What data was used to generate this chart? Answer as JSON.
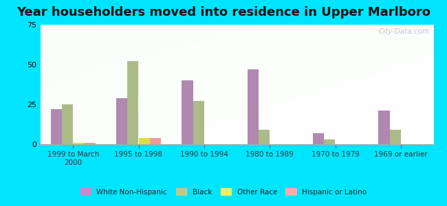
{
  "title": "Year householders moved into residence in Upper Marlboro",
  "categories": [
    "1999 to March\n2000",
    "1995 to 1998",
    "1990 to 1994",
    "1980 to 1989",
    "1970 to 1979",
    "1969 or earlier"
  ],
  "series": {
    "White Non-Hispanic": [
      22,
      29,
      40,
      47,
      7,
      21
    ],
    "Black": [
      25,
      52,
      27,
      9,
      3,
      9
    ],
    "Other Race": [
      1,
      4,
      0,
      0,
      0,
      0
    ],
    "Hispanic or Latino": [
      1,
      4,
      0,
      0,
      0,
      0
    ]
  },
  "colors": {
    "White Non-Hispanic": "#b088b0",
    "Black": "#aabb88",
    "Other Race": "#dddd44",
    "Hispanic or Latino": "#ee9999"
  },
  "legend_colors": {
    "White Non-Hispanic": "#cc88cc",
    "Black": "#bbcc88",
    "Other Race": "#eeee66",
    "Hispanic or Latino": "#ffaaaa"
  },
  "ylim": [
    0,
    75
  ],
  "yticks": [
    0,
    25,
    50,
    75
  ],
  "outer_bg": "#00e5ff",
  "watermark": "City-Data.com",
  "bar_width": 0.17,
  "title_fontsize": 13
}
